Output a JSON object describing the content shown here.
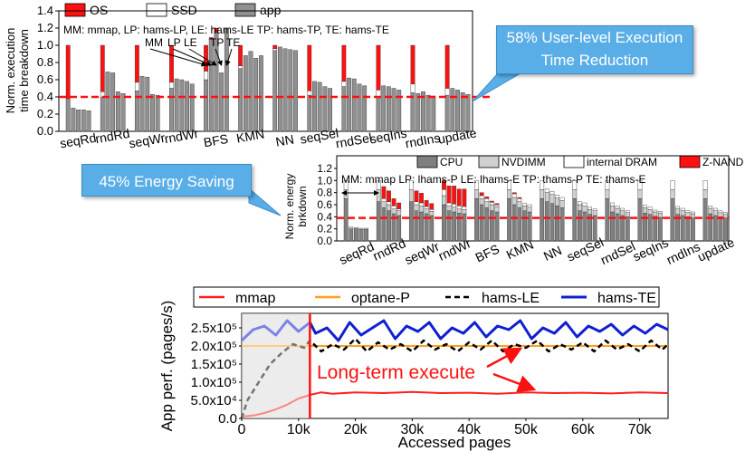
{
  "chart_data": [
    {
      "type": "bar",
      "legend": [
        {
          "name": "OS",
          "color": "#ff1010"
        },
        {
          "name": "SSD",
          "color": "#ffffff"
        },
        {
          "name": "app",
          "color": "#909090"
        }
      ],
      "ylabel": "Norm. execution time breakdown",
      "yticks": [
        "0.0",
        "0.2",
        "0.4",
        "0.6",
        "0.8",
        "1.0",
        "1.2",
        "1.4"
      ],
      "ylim": [
        0,
        1.4
      ],
      "baseline": 0.4,
      "categories": [
        "seqRd",
        "rndRd",
        "seqWr",
        "rndWr",
        "BFS",
        "KMN",
        "NN",
        "seqSel",
        "rndSel",
        "seqIns",
        "rndIns",
        "update"
      ],
      "systems": [
        "MM",
        "LP",
        "LE",
        "TP",
        "TE"
      ],
      "bars": [
        [
          [
            0.38,
            0,
            0.62
          ],
          [
            0.27,
            0,
            0
          ],
          [
            0.25,
            0,
            0
          ],
          [
            0.25,
            0,
            0
          ],
          [
            0.24,
            0,
            0
          ]
        ],
        [
          [
            0.4,
            0.06,
            0.54
          ],
          [
            0.69,
            0,
            0
          ],
          [
            0.68,
            0,
            0
          ],
          [
            0.46,
            0,
            0
          ],
          [
            0.44,
            0,
            0
          ]
        ],
        [
          [
            0.47,
            0.1,
            0.43
          ],
          [
            0.64,
            0,
            0
          ],
          [
            0.63,
            0,
            0
          ],
          [
            0.43,
            0,
            0
          ],
          [
            0.42,
            0,
            0
          ]
        ],
        [
          [
            0.5,
            0.07,
            0.43
          ],
          [
            0.61,
            0,
            0
          ],
          [
            0.6,
            0,
            0
          ],
          [
            0.58,
            0,
            0
          ],
          [
            0.55,
            0,
            0
          ]
        ],
        [
          [
            0.6,
            0.1,
            0.3
          ],
          [
            1.07,
            0,
            0.02
          ],
          [
            1.15,
            0,
            0.05
          ],
          [
            0.68,
            0,
            0
          ],
          [
            1.2,
            0,
            0
          ]
        ],
        [
          [
            0.73,
            0.03,
            0.24
          ],
          [
            0.88,
            0,
            0
          ],
          [
            0.93,
            0,
            0
          ],
          [
            0.85,
            0,
            0
          ],
          [
            0.88,
            0,
            0
          ]
        ],
        [
          [
            0.94,
            0.02,
            0.04
          ],
          [
            0.98,
            0,
            0
          ],
          [
            0.96,
            0,
            0
          ],
          [
            0.95,
            0,
            0
          ],
          [
            0.94,
            0,
            0
          ]
        ],
        [
          [
            0.42,
            0.05,
            0.53
          ],
          [
            0.58,
            0,
            0
          ],
          [
            0.57,
            0,
            0
          ],
          [
            0.52,
            0,
            0
          ],
          [
            0.5,
            0,
            0
          ]
        ],
        [
          [
            0.52,
            0.06,
            0.42
          ],
          [
            0.62,
            0,
            0
          ],
          [
            0.61,
            0,
            0
          ],
          [
            0.55,
            0,
            0
          ],
          [
            0.53,
            0,
            0
          ]
        ],
        [
          [
            0.4,
            0.08,
            0.52
          ],
          [
            0.53,
            0,
            0
          ],
          [
            0.52,
            0,
            0
          ],
          [
            0.5,
            0,
            0
          ],
          [
            0.48,
            0,
            0
          ]
        ],
        [
          [
            0.45,
            0.1,
            0.45
          ],
          [
            0.44,
            0,
            0
          ],
          [
            0.46,
            0,
            0
          ],
          [
            0.42,
            0,
            0
          ],
          [
            0.41,
            0,
            0
          ]
        ],
        [
          [
            0.42,
            0.08,
            0.5
          ],
          [
            0.5,
            0,
            0
          ],
          [
            0.48,
            0,
            0
          ],
          [
            0.45,
            0,
            0
          ],
          [
            0.43,
            0,
            0
          ]
        ]
      ],
      "annotation": "MM: mmap, LP: hams-LP, LE: hams-LE TP: hams-TP, TE: hams-TE",
      "bar_labels": [
        "MM",
        "LP",
        "LE",
        "TP",
        "TE"
      ]
    },
    {
      "type": "bar",
      "legend": [
        {
          "name": "CPU",
          "color": "#808080"
        },
        {
          "name": "NVDIMM",
          "color": "#d0d0d0"
        },
        {
          "name": "internal DRAM",
          "color": "#ffffff"
        },
        {
          "name": "Z-NAND",
          "color": "#ff1010"
        }
      ],
      "ylabel": "Norm. energy brkdown",
      "yticks": [
        "0.0",
        "0.2",
        "0.4",
        "0.6",
        "0.8",
        "1.0",
        "1.2"
      ],
      "ylim": [
        0,
        1.2
      ],
      "baseline": 0.38,
      "categories": [
        "seqRd",
        "rndRd",
        "seqWr",
        "rndWr",
        "BFS",
        "KMN",
        "NN",
        "seqSel",
        "rndSel",
        "seqIns",
        "rndIns",
        "update"
      ],
      "systems": [
        "MM",
        "LP",
        "LE",
        "TP",
        "TE"
      ],
      "bars": [
        [
          [
            0.7,
            0.15,
            0.15,
            0.0
          ],
          [
            0.2,
            0.03,
            0,
            0
          ],
          [
            0.2,
            0.02,
            0,
            0
          ],
          [
            0.19,
            0.02,
            0,
            0
          ],
          [
            0.19,
            0.02,
            0,
            0
          ]
        ],
        [
          [
            0.65,
            0.2,
            0.15,
            0.0
          ],
          [
            0.55,
            0.1,
            0.05,
            0.2
          ],
          [
            0.5,
            0.1,
            0.05,
            0.18
          ],
          [
            0.45,
            0.08,
            0.05,
            0.12
          ],
          [
            0.42,
            0.08,
            0.03,
            0.1
          ]
        ],
        [
          [
            0.65,
            0.2,
            0.15,
            0.0
          ],
          [
            0.5,
            0.1,
            0.05,
            0.18
          ],
          [
            0.48,
            0.1,
            0.05,
            0.16
          ],
          [
            0.45,
            0.08,
            0.04,
            0.1
          ],
          [
            0.42,
            0.07,
            0.03,
            0.1
          ]
        ],
        [
          [
            0.6,
            0.15,
            0.1,
            0.15
          ],
          [
            0.5,
            0.08,
            0.05,
            0.28
          ],
          [
            0.48,
            0.08,
            0.05,
            0.3
          ],
          [
            0.46,
            0.07,
            0.05,
            0.28
          ],
          [
            0.45,
            0.07,
            0.05,
            0.29
          ]
        ],
        [
          [
            0.7,
            0.15,
            0.15,
            0.0
          ],
          [
            0.6,
            0.1,
            0.05,
            0.05
          ],
          [
            0.55,
            0.1,
            0.05,
            0.03
          ],
          [
            0.5,
            0.1,
            0.04,
            0.02
          ],
          [
            0.48,
            0.09,
            0.03,
            0.02
          ]
        ],
        [
          [
            0.7,
            0.15,
            0.15,
            0.0
          ],
          [
            0.6,
            0.12,
            0.06,
            0.02
          ],
          [
            0.55,
            0.1,
            0.05,
            0.02
          ],
          [
            0.5,
            0.08,
            0.04,
            0.0
          ],
          [
            0.48,
            0.08,
            0.04,
            0.0
          ]
        ],
        [
          [
            0.7,
            0.15,
            0.15,
            0.0
          ],
          [
            0.65,
            0.15,
            0.06,
            0.0
          ],
          [
            0.62,
            0.15,
            0.05,
            0.0
          ],
          [
            0.58,
            0.13,
            0.05,
            0.0
          ],
          [
            0.55,
            0.12,
            0.05,
            0.0
          ]
        ],
        [
          [
            0.7,
            0.15,
            0.15,
            0.0
          ],
          [
            0.5,
            0.1,
            0.05,
            0.0
          ],
          [
            0.48,
            0.1,
            0.05,
            0.0
          ],
          [
            0.44,
            0.08,
            0.04,
            0.0
          ],
          [
            0.42,
            0.08,
            0.03,
            0.0
          ]
        ],
        [
          [
            0.7,
            0.15,
            0.15,
            0.0
          ],
          [
            0.48,
            0.1,
            0.05,
            0.0
          ],
          [
            0.45,
            0.09,
            0.04,
            0.0
          ],
          [
            0.42,
            0.08,
            0.04,
            0.0
          ],
          [
            0.4,
            0.07,
            0.03,
            0.0
          ]
        ],
        [
          [
            0.7,
            0.15,
            0.15,
            0.0
          ],
          [
            0.46,
            0.09,
            0.04,
            0.0
          ],
          [
            0.44,
            0.08,
            0.04,
            0.0
          ],
          [
            0.41,
            0.07,
            0.03,
            0.0
          ],
          [
            0.39,
            0.07,
            0.03,
            0.0
          ]
        ],
        [
          [
            0.7,
            0.15,
            0.15,
            0.0
          ],
          [
            0.44,
            0.09,
            0.04,
            0.0
          ],
          [
            0.42,
            0.08,
            0.04,
            0.0
          ],
          [
            0.4,
            0.07,
            0.03,
            0.0
          ],
          [
            0.38,
            0.07,
            0.03,
            0.0
          ]
        ],
        [
          [
            0.7,
            0.15,
            0.15,
            0.0
          ],
          [
            0.45,
            0.09,
            0.04,
            0.0
          ],
          [
            0.42,
            0.08,
            0.04,
            0.0
          ],
          [
            0.4,
            0.07,
            0.03,
            0.0
          ],
          [
            0.38,
            0.06,
            0.03,
            0.0
          ]
        ]
      ],
      "annotation": "MM: mmap LP: lhams-P LE: lhams-E TP: thams-P TE: thams-E"
    },
    {
      "type": "line",
      "legend": [
        {
          "name": "mmap",
          "color": "#ff2020",
          "dash": "solid"
        },
        {
          "name": "optane-P",
          "color": "#ffa020",
          "dash": "solid"
        },
        {
          "name": "hams-LE",
          "color": "#000000",
          "dash": "dashed"
        },
        {
          "name": "hams-TE",
          "color": "#1020d0",
          "dash": "solid"
        }
      ],
      "ylabel": "App perf. (pages/s)",
      "xlabel": "Accessed pages",
      "xticks": [
        "0",
        "10k",
        "20k",
        "30k",
        "40k",
        "50k",
        "60k",
        "70k"
      ],
      "yticks": [
        "0.0",
        "5.0x10⁴",
        "1.0x10⁵",
        "1.5x10⁵",
        "2.0x10⁵",
        "2.5x10⁵"
      ],
      "xlim": [
        0,
        75000
      ],
      "ylim": [
        0,
        290000
      ],
      "shaded_until": 12000,
      "series": [
        {
          "name": "mmap",
          "x": [
            0,
            2000,
            4000,
            6000,
            8000,
            10000,
            12000,
            14000,
            16000,
            20000,
            25000,
            30000,
            35000,
            40000,
            45000,
            50000,
            55000,
            60000,
            65000,
            70000,
            75000
          ],
          "values": [
            5000,
            8000,
            15000,
            25000,
            38000,
            55000,
            65000,
            72000,
            68000,
            72000,
            70000,
            73000,
            70000,
            71000,
            68000,
            72000,
            70000,
            71000,
            69000,
            72000,
            70000
          ]
        },
        {
          "name": "optane-P",
          "x": [
            0,
            12000,
            20000,
            30000,
            40000,
            50000,
            60000,
            75000
          ],
          "values": [
            200000,
            200000,
            200000,
            200000,
            200000,
            200000,
            200000,
            200000
          ]
        },
        {
          "name": "hams-LE",
          "x": [
            0,
            1000,
            3000,
            5000,
            7000,
            9000,
            11000,
            12000,
            14000,
            16000,
            18000,
            20000,
            22000,
            24000,
            26000,
            28000,
            30000,
            32000,
            34000,
            36000,
            38000,
            40000,
            42000,
            44000,
            46000,
            48000,
            50000,
            52000,
            54000,
            56000,
            58000,
            60000,
            62000,
            64000,
            66000,
            68000,
            70000,
            72000,
            74000,
            75000
          ],
          "values": [
            0,
            50000,
            100000,
            150000,
            180000,
            205000,
            195000,
            215000,
            185000,
            205000,
            190000,
            220000,
            185000,
            210000,
            190000,
            205000,
            185000,
            215000,
            190000,
            205000,
            185000,
            210000,
            190000,
            215000,
            185000,
            205000,
            195000,
            215000,
            185000,
            205000,
            190000,
            210000,
            185000,
            215000,
            190000,
            205000,
            185000,
            215000,
            190000,
            205000
          ]
        },
        {
          "name": "hams-TE",
          "x": [
            0,
            2000,
            4000,
            6000,
            8000,
            10000,
            12000,
            13000,
            15000,
            17000,
            19000,
            21000,
            23000,
            25000,
            27000,
            29000,
            31000,
            33000,
            35000,
            37000,
            39000,
            41000,
            43000,
            45000,
            47000,
            49000,
            51000,
            53000,
            55000,
            57000,
            59000,
            61000,
            63000,
            65000,
            67000,
            69000,
            71000,
            73000,
            75000
          ],
          "values": [
            215000,
            245000,
            255000,
            230000,
            270000,
            240000,
            265000,
            235000,
            250000,
            215000,
            265000,
            230000,
            250000,
            270000,
            220000,
            255000,
            240000,
            265000,
            220000,
            250000,
            235000,
            265000,
            225000,
            255000,
            245000,
            270000,
            220000,
            250000,
            235000,
            265000,
            225000,
            255000,
            240000,
            260000,
            230000,
            255000,
            235000,
            260000,
            245000
          ]
        }
      ],
      "annotation": "Long-term execute"
    }
  ],
  "callouts": {
    "exec": "58% User-level Execution Time Reduction",
    "exec_line1": "58% User-level Execution",
    "exec_line2": "Time Reduction",
    "energy": "45% Energy Saving"
  }
}
